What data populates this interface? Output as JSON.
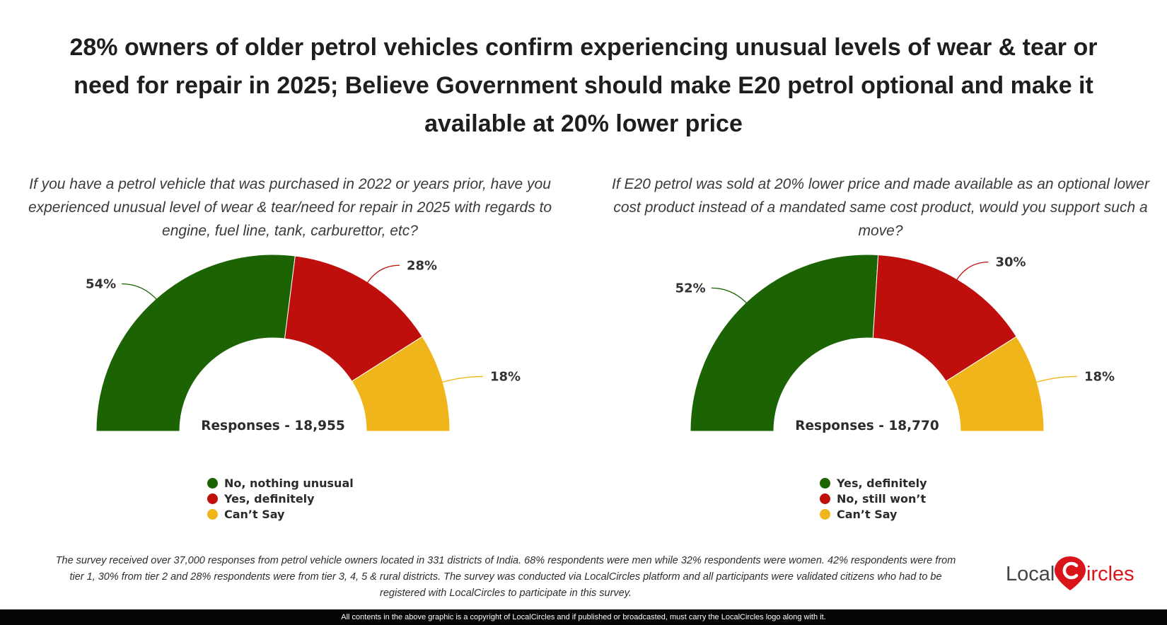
{
  "title": "28% owners of older petrol vehicles confirm experiencing unusual levels of wear & tear or need for repair in 2025; Believe Government should make E20 petrol optional and make it available at 20% lower price",
  "colors": {
    "green": "#1c6304",
    "red": "#bf0f0c",
    "yellow": "#f0b51a",
    "leader_green": "#1c6304",
    "leader_red": "#bf0f0c",
    "leader_yellow": "#f0b51a"
  },
  "chart_data": [
    {
      "type": "pie",
      "style": "semi-donut",
      "question": "If you have a petrol vehicle that was purchased in 2022 or years prior, have you experienced unusual level of wear & tear/need for repair in 2025 with regards to engine, fuel line, tank, carburettor, etc?",
      "responses_label": "Responses - 18,955",
      "categories": [
        "No, nothing unusual",
        "Yes, definitely",
        "Can’t Say"
      ],
      "values": [
        54,
        28,
        18
      ],
      "labels": [
        "54%",
        "28%",
        "18%"
      ],
      "colors": [
        "#1c6304",
        "#bf0f0c",
        "#f0b51a"
      ]
    },
    {
      "type": "pie",
      "style": "semi-donut",
      "question": "If E20 petrol was sold at 20% lower price and made available as an optional lower cost product instead of a mandated same cost product, would you support such a move?",
      "responses_label": "Responses - 18,770",
      "categories": [
        "Yes, definitely",
        "No, still won’t",
        "Can’t Say"
      ],
      "values": [
        52,
        30,
        18
      ],
      "labels": [
        "52%",
        "30%",
        "18%"
      ],
      "colors": [
        "#1c6304",
        "#bf0f0c",
        "#f0b51a"
      ]
    }
  ],
  "footnote": "The survey received over 37,000 responses from petrol vehicle owners located in 331 districts of India. 68% respondents were men while 32% respondents were women. 42% respondents were from tier 1, 30% from tier 2 and 28% respondents were from tier 3, 4, 5 & rural districts. The survey was conducted via LocalCircles platform and all participants were validated citizens who had to be registered with LocalCircles to participate in this survey.",
  "logo": {
    "text_left": "Local",
    "text_right": "ircles"
  },
  "copyright": "All contents in the above graphic is a copyright of LocalCircles and if published or broadcasted, must carry the LocalCircles logo along with it."
}
